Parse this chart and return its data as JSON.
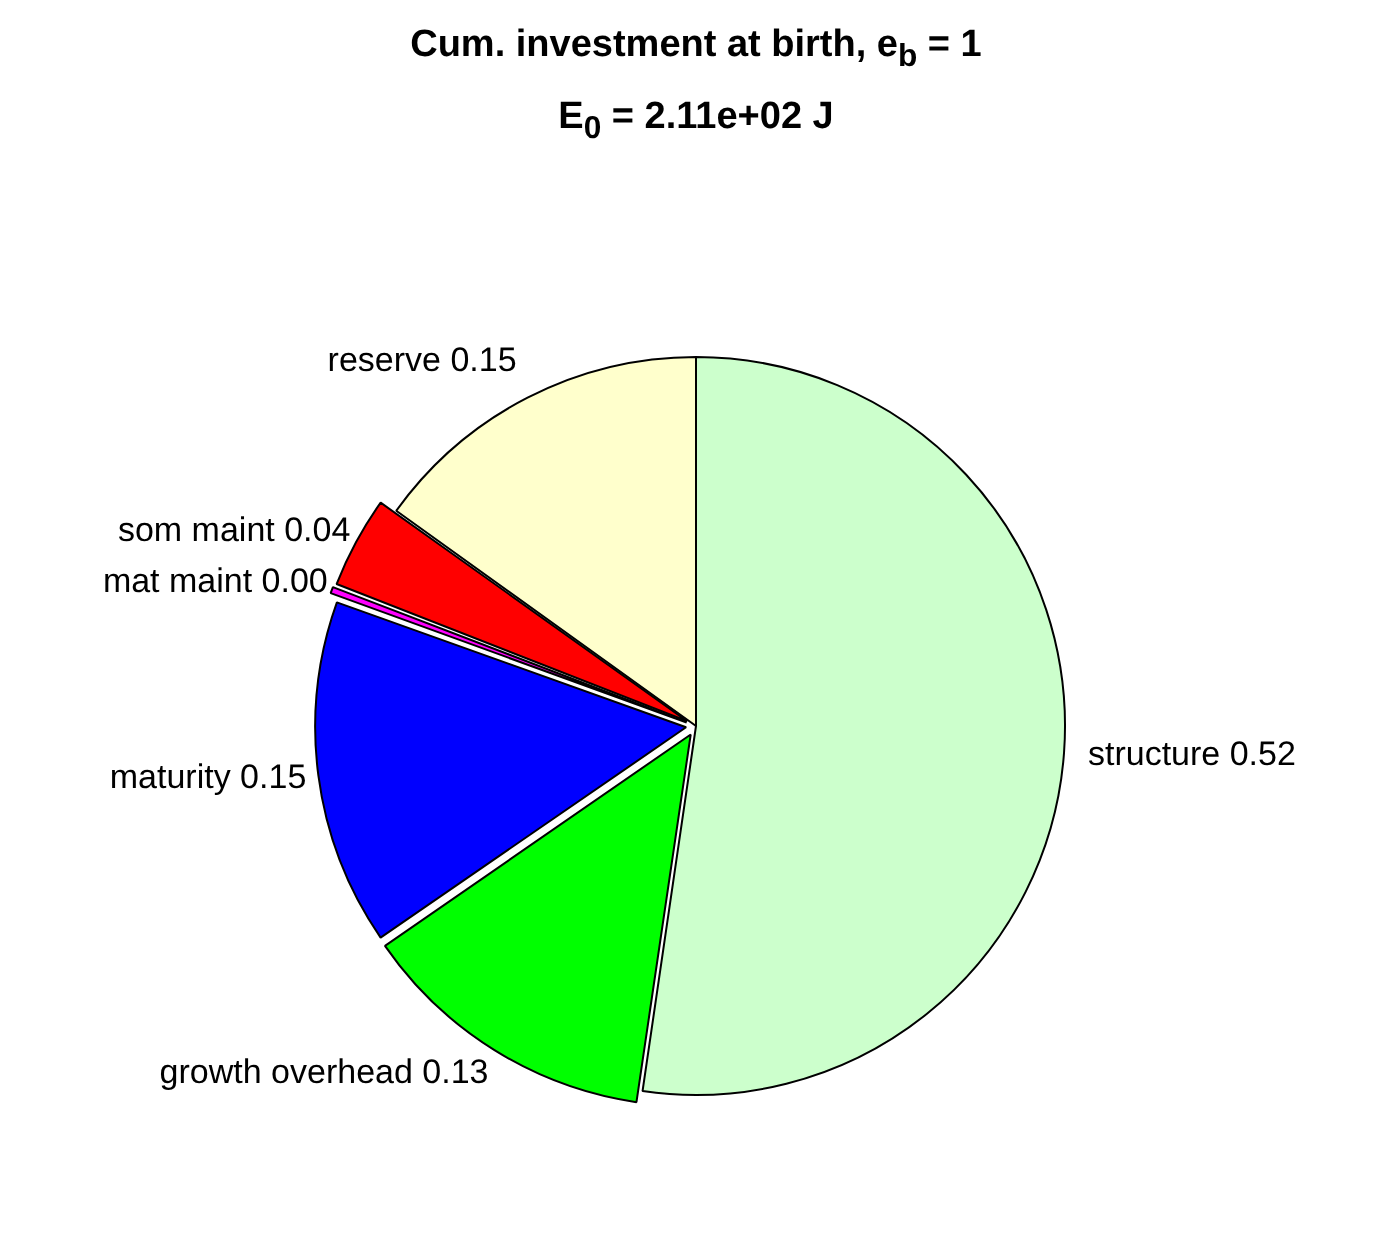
{
  "chart_data": {
    "type": "pie",
    "title": "Cum. investment at birth, e$_{b}$ = 1",
    "subtitle": "E$_{0}$ = 2.11e+02 J",
    "categories": [
      "structure",
      "growth overhead",
      "maturity",
      "mat maint",
      "som maint",
      "reserve"
    ],
    "values": [
      0.52,
      0.13,
      0.15,
      0.004,
      0.04,
      0.15
    ],
    "value_labels": [
      "0.52",
      "0.13",
      "0.15",
      "0.00",
      "0.04",
      "0.15"
    ],
    "colors": [
      "#ccffcc",
      "#00ff00",
      "#0000ff",
      "#ff00ff",
      "#ff0000",
      "#ffffcc"
    ],
    "legend": false
  }
}
